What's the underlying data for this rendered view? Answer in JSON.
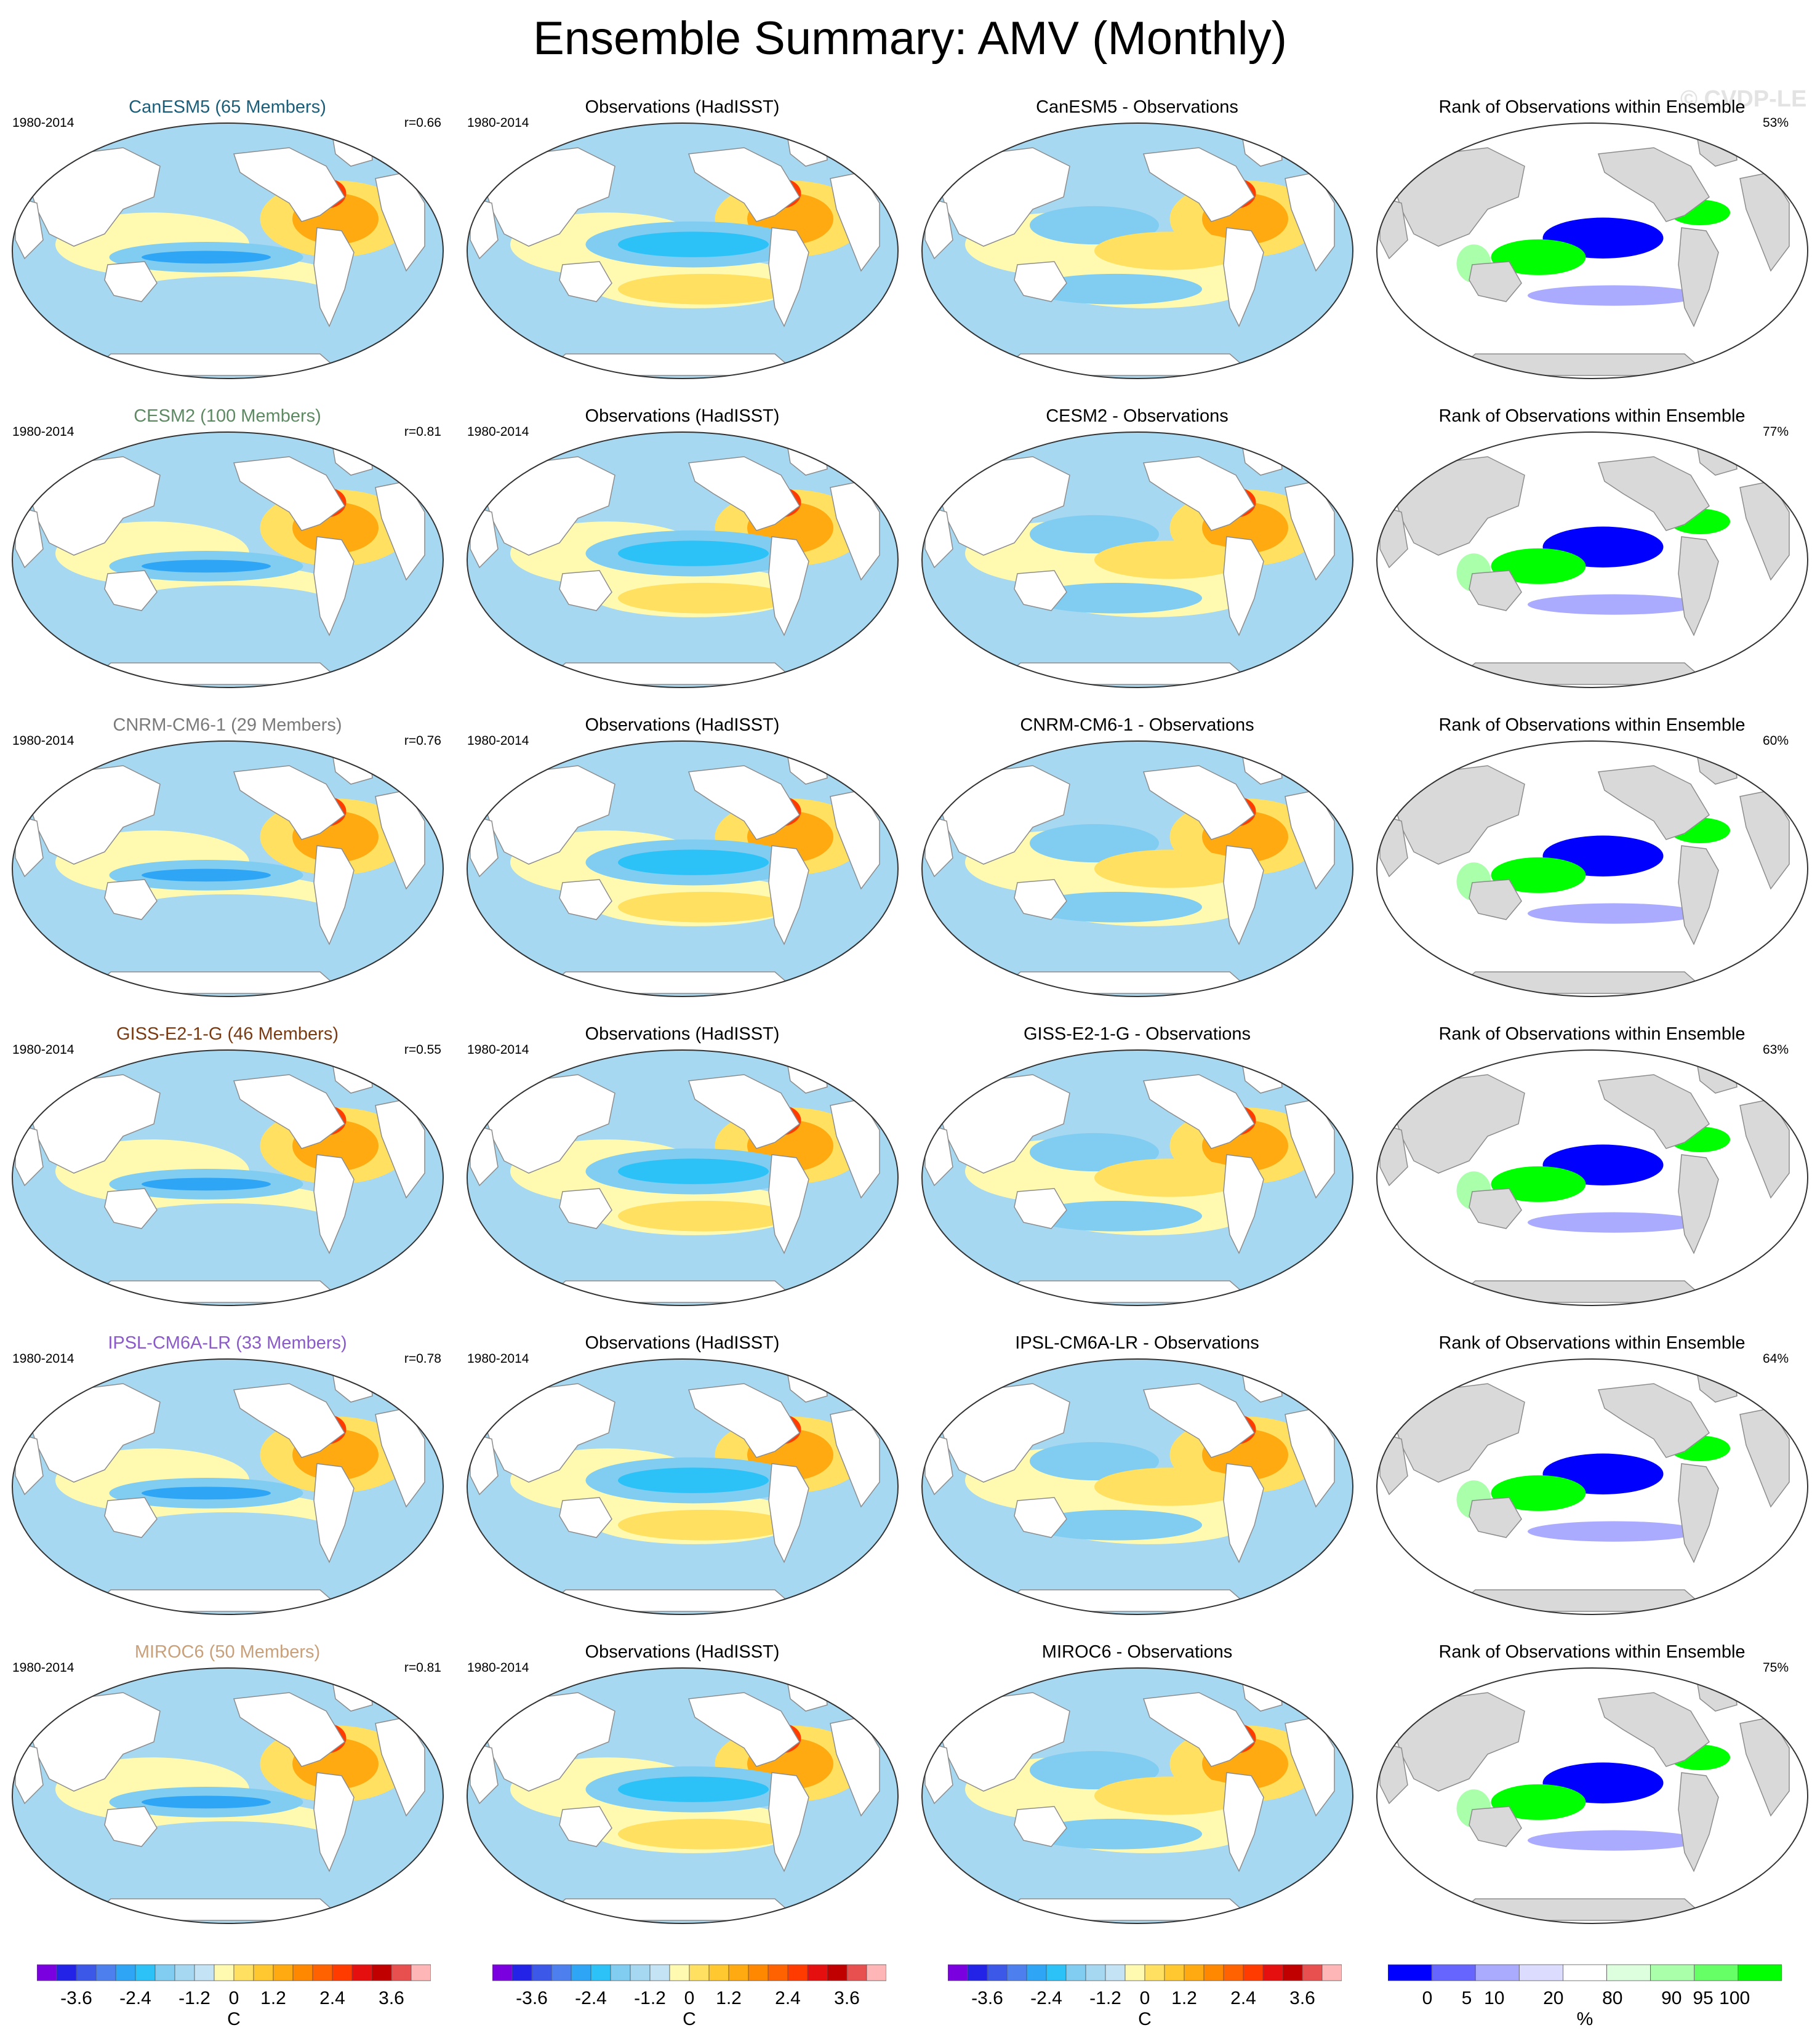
{
  "title": "Ensemble Summary: AMV (Monthly)",
  "watermark": "© CVDP-LE",
  "colors": {
    "land": "#ffffff",
    "rank_land": "#d9d9d9",
    "coast": "#8c8c8c",
    "diverging": [
      "#7b00e0",
      "#2323e8",
      "#3c58e8",
      "#4d7fef",
      "#2fa5f5",
      "#2dc2f7",
      "#81cdf2",
      "#a6d8f2",
      "#c4e4f5",
      "#fffab0",
      "#ffe060",
      "#ffc830",
      "#ffaa10",
      "#ff8800",
      "#ff6200",
      "#ff3b00",
      "#e60f0f",
      "#c00000",
      "#e85050",
      "#ffb6b6"
    ],
    "rank": [
      "#0000ff",
      "#6666ff",
      "#aaaaff",
      "#dcdcff",
      "#ffffff",
      "#ddffdd",
      "#aaffaa",
      "#66ff66",
      "#00ff00"
    ]
  },
  "rows": [
    {
      "model": "CanESM5",
      "label": "CanESM5 (65 Members)",
      "label_color": "#1b5e7a",
      "r": "r=0.66",
      "diff": "CanESM5 - Observations",
      "pct": "53%"
    },
    {
      "model": "CESM2",
      "label": "CESM2 (100 Members)",
      "label_color": "#5e8a63",
      "r": "r=0.81",
      "diff": "CESM2 - Observations",
      "pct": "77%"
    },
    {
      "model": "CNRM-CM6-1",
      "label": "CNRM-CM6-1 (29 Members)",
      "label_color": "#7a7a7a",
      "r": "r=0.76",
      "diff": "CNRM-CM6-1 - Observations",
      "pct": "60%"
    },
    {
      "model": "GISS-E2-1-G",
      "label": "GISS-E2-1-G (46 Members)",
      "label_color": "#7a3a12",
      "r": "r=0.55",
      "diff": "GISS-E2-1-G - Observations",
      "pct": "63%"
    },
    {
      "model": "IPSL-CM6A-LR",
      "label": "IPSL-CM6A-LR (33 Members)",
      "label_color": "#8a5ac8",
      "r": "r=0.78",
      "diff": "IPSL-CM6A-LR - Observations",
      "pct": "64%"
    },
    {
      "model": "MIROC6",
      "label": "MIROC6 (50 Members)",
      "label_color": "#c8a07a",
      "r": "r=0.81",
      "diff": "MIROC6 - Observations",
      "pct": "75%"
    }
  ],
  "obs_title": "Observations (HadISST)",
  "rank_title": "Rank of Observations within Ensemble",
  "years": "1980-2014",
  "colorbar_sst": {
    "ticks": [
      "-3.6",
      "-2.4",
      "-1.2",
      "0",
      "1.2",
      "2.4",
      "3.6"
    ],
    "unit": "C"
  },
  "colorbar_rank": {
    "ticks": [
      "0",
      "5",
      "10",
      "20",
      "80",
      "90",
      "95",
      "100"
    ],
    "unit": "%"
  }
}
